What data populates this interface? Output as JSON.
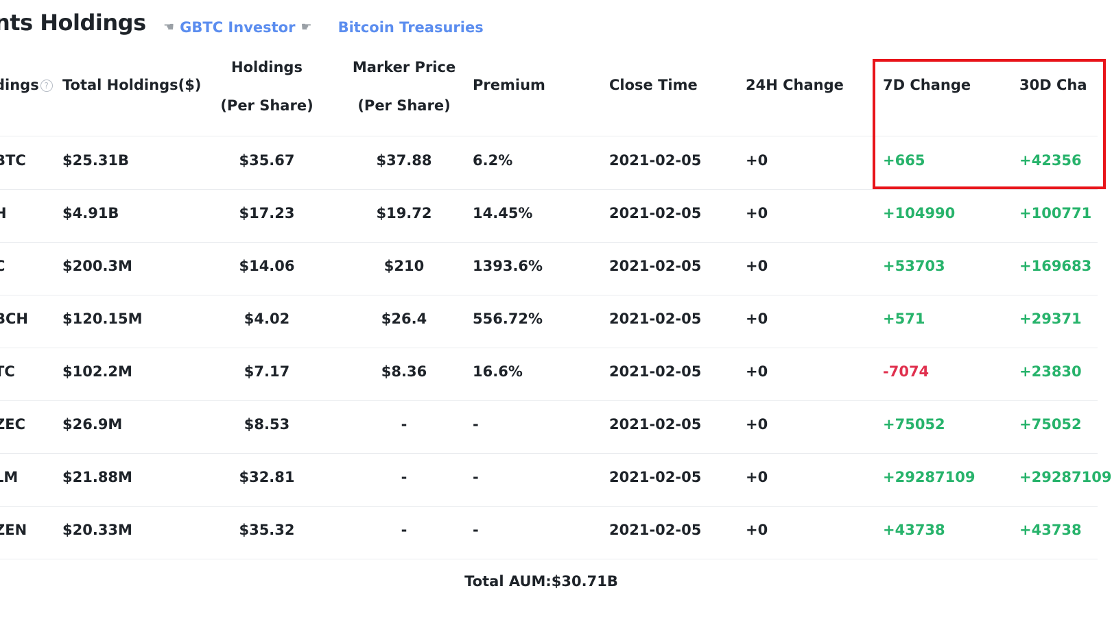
{
  "page_title": "nts Holdings",
  "nav": {
    "prev_link": "GBTC Investor",
    "next_link": "Bitcoin Treasuries"
  },
  "table": {
    "headers": {
      "holdings": "dings",
      "total_holdings": "Total Holdings($)",
      "holdings_per_share_1": "Holdings",
      "holdings_per_share_2": "(Per Share)",
      "market_price_1": "Marker Price",
      "market_price_2": "(Per Share)",
      "premium": "Premium",
      "close_time": "Close Time",
      "change_24h": "24H Change",
      "change_7d": "7D Change",
      "change_30d": "30D Cha"
    },
    "rows": [
      {
        "asset": "BTC",
        "total": "$25.31B",
        "holdings_ps": "$35.67",
        "market_ps": "$37.88",
        "premium": "6.2%",
        "close": "2021-02-05",
        "c24": "+0",
        "c7": "+665",
        "c30": "+42356"
      },
      {
        "asset": "H",
        "total": "$4.91B",
        "holdings_ps": "$17.23",
        "market_ps": "$19.72",
        "premium": "14.45%",
        "close": "2021-02-05",
        "c24": "+0",
        "c7": "+104990",
        "c30": "+100771"
      },
      {
        "asset": "C",
        "total": "$200.3M",
        "holdings_ps": "$14.06",
        "market_ps": "$210",
        "premium": "1393.6%",
        "close": "2021-02-05",
        "c24": "+0",
        "c7": "+53703",
        "c30": "+169683"
      },
      {
        "asset": "BCH",
        "total": "$120.15M",
        "holdings_ps": "$4.02",
        "market_ps": "$26.4",
        "premium": "556.72%",
        "close": "2021-02-05",
        "c24": "+0",
        "c7": "+571",
        "c30": "+29371"
      },
      {
        "asset": "TC",
        "total": "$102.2M",
        "holdings_ps": "$7.17",
        "market_ps": "$8.36",
        "premium": "16.6%",
        "close": "2021-02-05",
        "c24": "+0",
        "c7": "-7074",
        "c30": "+23830"
      },
      {
        "asset": "ZEC",
        "total": "$26.9M",
        "holdings_ps": "$8.53",
        "market_ps": "-",
        "premium": "-",
        "close": "2021-02-05",
        "c24": "+0",
        "c7": "+75052",
        "c30": "+75052"
      },
      {
        "asset": "LM",
        "total": "$21.88M",
        "holdings_ps": "$32.81",
        "market_ps": "-",
        "premium": "-",
        "close": "2021-02-05",
        "c24": "+0",
        "c7": "+29287109",
        "c30": "+29287109"
      },
      {
        "asset": "ZEN",
        "total": "$20.33M",
        "holdings_ps": "$35.32",
        "market_ps": "-",
        "premium": "-",
        "close": "2021-02-05",
        "c24": "+0",
        "c7": "+43738",
        "c30": "+43738"
      }
    ],
    "total_aum": "Total AUM:$30.71B"
  },
  "colors": {
    "positive": "#27b36b",
    "negative": "#e0304e",
    "link": "#5b8def",
    "highlight": "#e8141a"
  }
}
